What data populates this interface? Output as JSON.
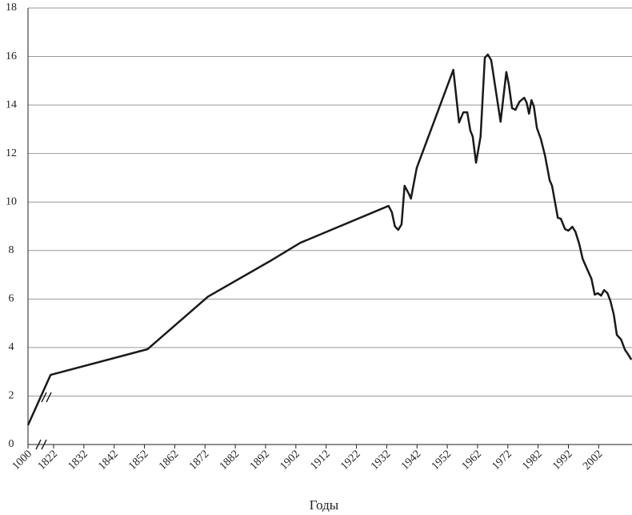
{
  "chart_data": {
    "type": "line",
    "x_label": "Годы",
    "x": [
      1000,
      1821,
      1853,
      1873,
      1893,
      1903.5,
      1932.6,
      1933.7,
      1934.7,
      1935.8,
      1936.9,
      1937.9,
      1939.3,
      1940,
      1941.9,
      1954,
      1955.9,
      1957.3,
      1958.6,
      1959.6,
      1960.4,
      1961.5,
      1963,
      1964.4,
      1965.4,
      1966.5,
      1969.6,
      1971.5,
      1972.3,
      1973.4,
      1974.5,
      1975.8,
      1977.4,
      1978.2,
      1979,
      1979.8,
      1980.6,
      1981.6,
      1982.9,
      1984.3,
      1985.8,
      1986.6,
      1988.5,
      1989.5,
      1990.9,
      1992,
      1993.3,
      1994.3,
      1995.6,
      1996.7,
      1998.3,
      1999.6,
      2000.7,
      2001.7,
      2002.8,
      2003.8,
      2004.9,
      2005.9,
      2007,
      2008,
      2009.4,
      2010.7,
      2011.5,
      2012.8
    ],
    "values": [
      0.8,
      2.87,
      3.93,
      6.1,
      7.53,
      8.32,
      9.84,
      9.58,
      9.0,
      8.85,
      9.08,
      10.67,
      10.34,
      10.14,
      11.4,
      15.45,
      13.28,
      13.7,
      13.7,
      12.95,
      12.7,
      11.62,
      12.7,
      15.95,
      16.08,
      15.85,
      13.31,
      15.36,
      14.86,
      13.87,
      13.8,
      14.13,
      14.3,
      14.1,
      13.64,
      14.2,
      13.94,
      13.05,
      12.6,
      11.9,
      10.9,
      10.67,
      9.35,
      9.31,
      8.88,
      8.82,
      8.98,
      8.78,
      8.26,
      7.66,
      7.2,
      6.84,
      6.18,
      6.24,
      6.14,
      6.37,
      6.24,
      5.91,
      5.35,
      4.52,
      4.33,
      3.9,
      3.76,
      3.5
    ],
    "color": "#1a1a1a",
    "xlim": [
      1000,
      2013
    ],
    "xticks": [
      1000,
      1822,
      1832,
      1842,
      1852,
      1862,
      1872,
      1882,
      1892,
      1902,
      1912,
      1922,
      1932,
      1942,
      1952,
      1962,
      1972,
      1982,
      1992,
      2002
    ],
    "ylim": [
      0,
      18
    ],
    "yticks": [
      0,
      2,
      4,
      6,
      8,
      10,
      12,
      14,
      16,
      18
    ],
    "grid": true
  }
}
